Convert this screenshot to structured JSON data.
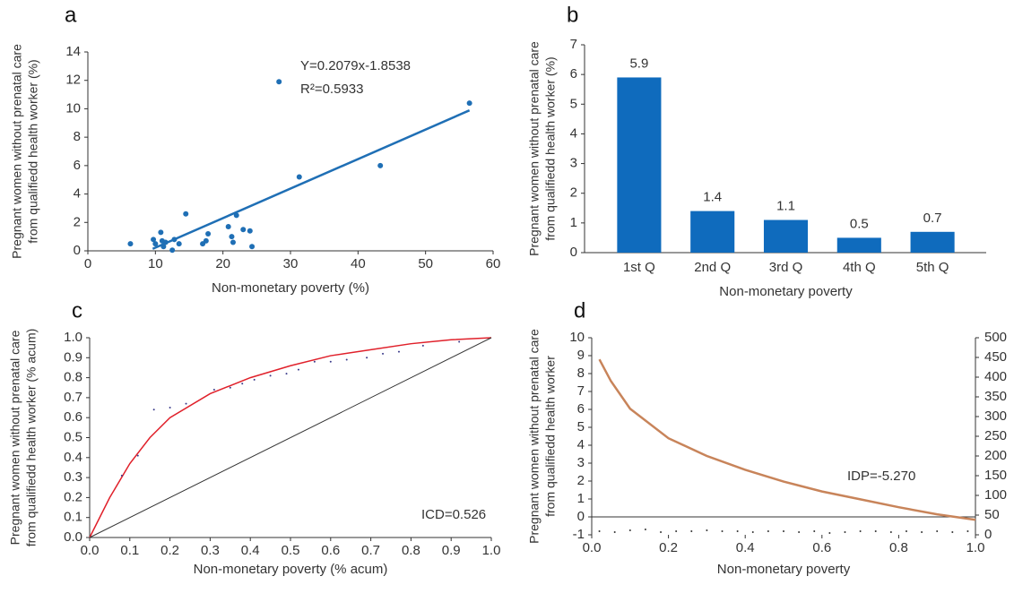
{
  "chart_data": [
    {
      "type": "scatter",
      "panel": "a",
      "ylabel": [
        "Pregnant women without prenatal care",
        "from qualifiedd health worker (%)"
      ],
      "xlabel": "Non-monetary poverty (%)",
      "x": [
        6.3,
        9.7,
        10,
        10.8,
        11,
        11.2,
        11.5,
        12.5,
        12.8,
        13.5,
        14.5,
        17,
        17.5,
        17.8,
        20.8,
        21.3,
        21.5,
        22,
        23,
        24,
        24.3,
        28.3,
        31.3,
        43.3,
        56.5
      ],
      "values": [
        0.5,
        0.8,
        0.5,
        1.3,
        0.7,
        0.3,
        0.6,
        0.05,
        0.8,
        0.5,
        2.6,
        0.5,
        0.7,
        1.2,
        1.7,
        1.0,
        0.6,
        2.5,
        1.5,
        1.4,
        0.3,
        11.9,
        5.2,
        6.0,
        10.4
      ],
      "color": "#1f6fb5",
      "fit": {
        "x": [
          9.6,
          56.5
        ],
        "values": [
          0.14,
          9.89
        ],
        "color": "#1f6fb5"
      },
      "annotations": [
        "Y=0.2079x-1.8538",
        "R²=0.5933"
      ],
      "xlim": [
        0,
        60
      ],
      "xticks": [
        0,
        10,
        20,
        30,
        40,
        50,
        60
      ],
      "ylim": [
        0,
        14
      ],
      "yticks": [
        0,
        2,
        4,
        6,
        8,
        10,
        12,
        14
      ]
    },
    {
      "type": "bar",
      "panel": "b",
      "ylabel": [
        "Pregnant women without prenatal care",
        "from qualifiedd health worker (%)"
      ],
      "xlabel": "Non-monetary poverty",
      "categories": [
        "1st Q",
        "2nd Q",
        "3rd Q",
        "4th Q",
        "5th Q"
      ],
      "values": [
        5.9,
        1.4,
        1.1,
        0.5,
        0.7
      ],
      "color": "#0f6bbd",
      "ylim": [
        0,
        7
      ],
      "yticks": [
        0,
        1,
        2,
        3,
        4,
        5,
        6,
        7
      ]
    },
    {
      "type": "line",
      "panel": "c",
      "ylabel": [
        "Pregnant women without prenatal care",
        "from qualifiedd health worker (% acum)"
      ],
      "xlabel": "Non-monetary poverty (% acum)",
      "series": [
        {
          "style": "line",
          "color": "#e0202a",
          "x": [
            0,
            0.05,
            0.1,
            0.15,
            0.2,
            0.3,
            0.4,
            0.5,
            0.6,
            0.7,
            0.8,
            0.9,
            1
          ],
          "values": [
            0,
            0.2,
            0.37,
            0.5,
            0.6,
            0.72,
            0.8,
            0.86,
            0.91,
            0.94,
            0.97,
            0.99,
            1
          ]
        },
        {
          "style": "line",
          "color": "#333333",
          "x": [
            0,
            1
          ],
          "values": [
            0,
            1
          ]
        },
        {
          "style": "dots",
          "color": "#3a3a8a",
          "x": [
            0.08,
            0.12,
            0.16,
            0.2,
            0.24,
            0.31,
            0.35,
            0.38,
            0.41,
            0.45,
            0.49,
            0.52,
            0.56,
            0.6,
            0.64,
            0.69,
            0.73,
            0.77,
            0.83,
            0.92
          ],
          "values": [
            0.31,
            0.41,
            0.64,
            0.65,
            0.67,
            0.74,
            0.75,
            0.77,
            0.79,
            0.81,
            0.82,
            0.84,
            0.88,
            0.88,
            0.89,
            0.9,
            0.92,
            0.93,
            0.96,
            0.98
          ]
        }
      ],
      "annotations": [
        "ICD=0.526"
      ],
      "xlim": [
        0,
        1
      ],
      "xticks": [
        {
          "value": 0,
          "label": "0.0"
        },
        0.1,
        0.2,
        0.3,
        0.4,
        0.5,
        0.6,
        0.7,
        0.8,
        0.9,
        {
          "value": 1,
          "label": "1.0"
        }
      ],
      "ylim": [
        0,
        1
      ],
      "yticks": [
        {
          "value": 0,
          "label": "0.0"
        },
        0.1,
        0.2,
        0.3,
        0.4,
        0.5,
        0.6,
        0.7,
        0.8,
        0.9,
        {
          "value": 1,
          "label": "1.0"
        }
      ]
    },
    {
      "type": "line",
      "panel": "d",
      "ylabel": [
        "Pregnant women without prenatal care",
        "from qualifiedd health worker"
      ],
      "xlabel": "Non-monetary poverty",
      "series": [
        {
          "style": "line",
          "axis": "y2",
          "color": "#c8845a",
          "x": [
            0.02,
            0.05,
            0.1,
            0.2,
            0.3,
            0.4,
            0.5,
            0.6,
            0.7,
            0.8,
            0.9,
            1
          ],
          "values": [
            445,
            390,
            320,
            245,
            200,
            165,
            135,
            110,
            90,
            70,
            52,
            38
          ]
        },
        {
          "style": "dots",
          "color": "#333333",
          "x": [
            0.02,
            0.06,
            0.1,
            0.14,
            0.18,
            0.22,
            0.26,
            0.3,
            0.34,
            0.38,
            0.42,
            0.46,
            0.5,
            0.54,
            0.58,
            0.62,
            0.66,
            0.7,
            0.74,
            0.78,
            0.82,
            0.86,
            0.9,
            0.94,
            0.98
          ],
          "values": [
            -0.8,
            -0.85,
            -0.75,
            -0.7,
            -0.85,
            -0.8,
            -0.8,
            -0.75,
            -0.8,
            -0.8,
            -0.85,
            -0.8,
            -0.8,
            -0.85,
            -0.8,
            -0.9,
            -0.85,
            -0.8,
            -0.8,
            -0.85,
            -0.8,
            -0.85,
            -0.8,
            -0.85,
            -0.8
          ]
        }
      ],
      "annotations": [
        "IDP=-5.270"
      ],
      "xlim": [
        0,
        1
      ],
      "xticks": [
        {
          "value": 0,
          "label": "0.0"
        },
        0.2,
        0.4,
        0.6,
        0.8,
        {
          "value": 1,
          "label": "1.0"
        }
      ],
      "ylim": [
        -1,
        10
      ],
      "yticks": [
        -1,
        0,
        1,
        2,
        3,
        4,
        5,
        6,
        7,
        8,
        9,
        10
      ],
      "y2lim": [
        0,
        500
      ],
      "y2ticks": [
        0,
        50,
        100,
        150,
        200,
        250,
        300,
        350,
        400,
        450,
        500
      ]
    }
  ]
}
